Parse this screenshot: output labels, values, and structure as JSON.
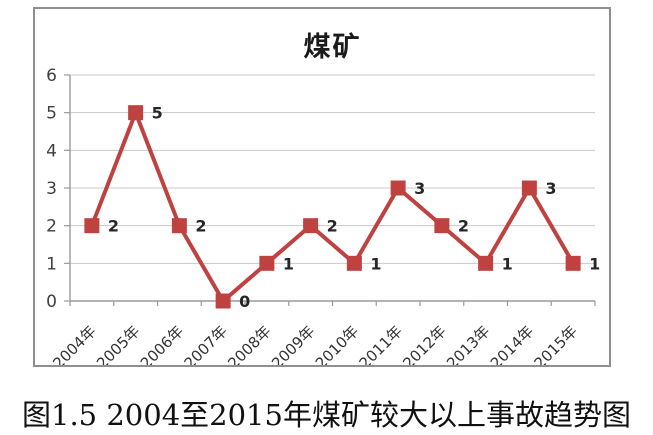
{
  "chart_data": {
    "type": "line",
    "title": "煤矿",
    "categories": [
      "2004年",
      "2005年",
      "2006年",
      "2007年",
      "2008年",
      "2009年",
      "2010年",
      "2011年",
      "2012年",
      "2013年",
      "2014年",
      "2015年"
    ],
    "values": [
      2,
      5,
      2,
      0,
      1,
      2,
      1,
      3,
      2,
      1,
      3,
      1
    ],
    "xlabel": "",
    "ylabel": "",
    "ylim": [
      0,
      6
    ],
    "yticks": [
      0,
      1,
      2,
      3,
      4,
      5,
      6
    ],
    "grid": true,
    "legend": "none",
    "marker": "square",
    "data_labels": true,
    "colors": {
      "series": "#bf4240",
      "grid": "#c9c9c9",
      "axis": "#9a9a9a",
      "axis_tick_text": "#3f3f3f",
      "data_label_text": "#262626",
      "title_text": "#1a1a1a",
      "frame_border": "#8f8f8f"
    }
  },
  "figure": {
    "caption": "图1.5 2004至2015年煤矿较大以上事故趋势图"
  }
}
